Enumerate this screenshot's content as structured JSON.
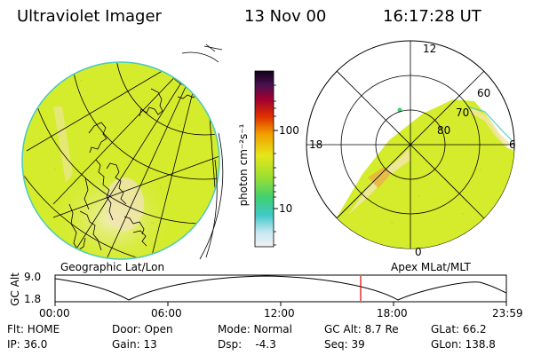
{
  "header": {
    "instrument": "Ultraviolet Imager",
    "date": "13 Nov 00",
    "time": "16:17:28 UT"
  },
  "colorbar": {
    "axis_label": "photon cm⁻²s⁻¹",
    "tick_100": "100",
    "tick_10": "10"
  },
  "geo_panel": {
    "label": "Geographic Lat/Lon"
  },
  "polar_panel": {
    "label": "Apex MLat/MLT",
    "mlt_12": "12",
    "mlt_18": "18",
    "mlt_6": "6",
    "mlt_0": "0",
    "lat_60": "60",
    "lat_70": "70",
    "lat_80": "80"
  },
  "orbit_strip": {
    "ylabel": "GC Alt",
    "y_top": "9.0",
    "y_bottom": "1.8",
    "x_ticks": [
      "00:00",
      "06:00",
      "12:00",
      "18:00",
      "23:59"
    ]
  },
  "info": {
    "flt": "Flt: HOME",
    "door": "Door: Open",
    "mode": "Mode: Normal",
    "gc_alt": "GC Alt: 8.7 Re",
    "glat": "GLat:  66.2",
    "ip": "IP: 36.0",
    "gain": "Gain: 13",
    "dsp": "Dsp:    -4.3",
    "seq": "Seq: 39",
    "glon": "GLon: 138.8"
  },
  "colors": {
    "background": "#ffffff",
    "disk_base": "#d4ec2c",
    "disk_bright": "#f2e6a8",
    "emission_orange": "#e8b43c",
    "cursor": "#e00000"
  }
}
